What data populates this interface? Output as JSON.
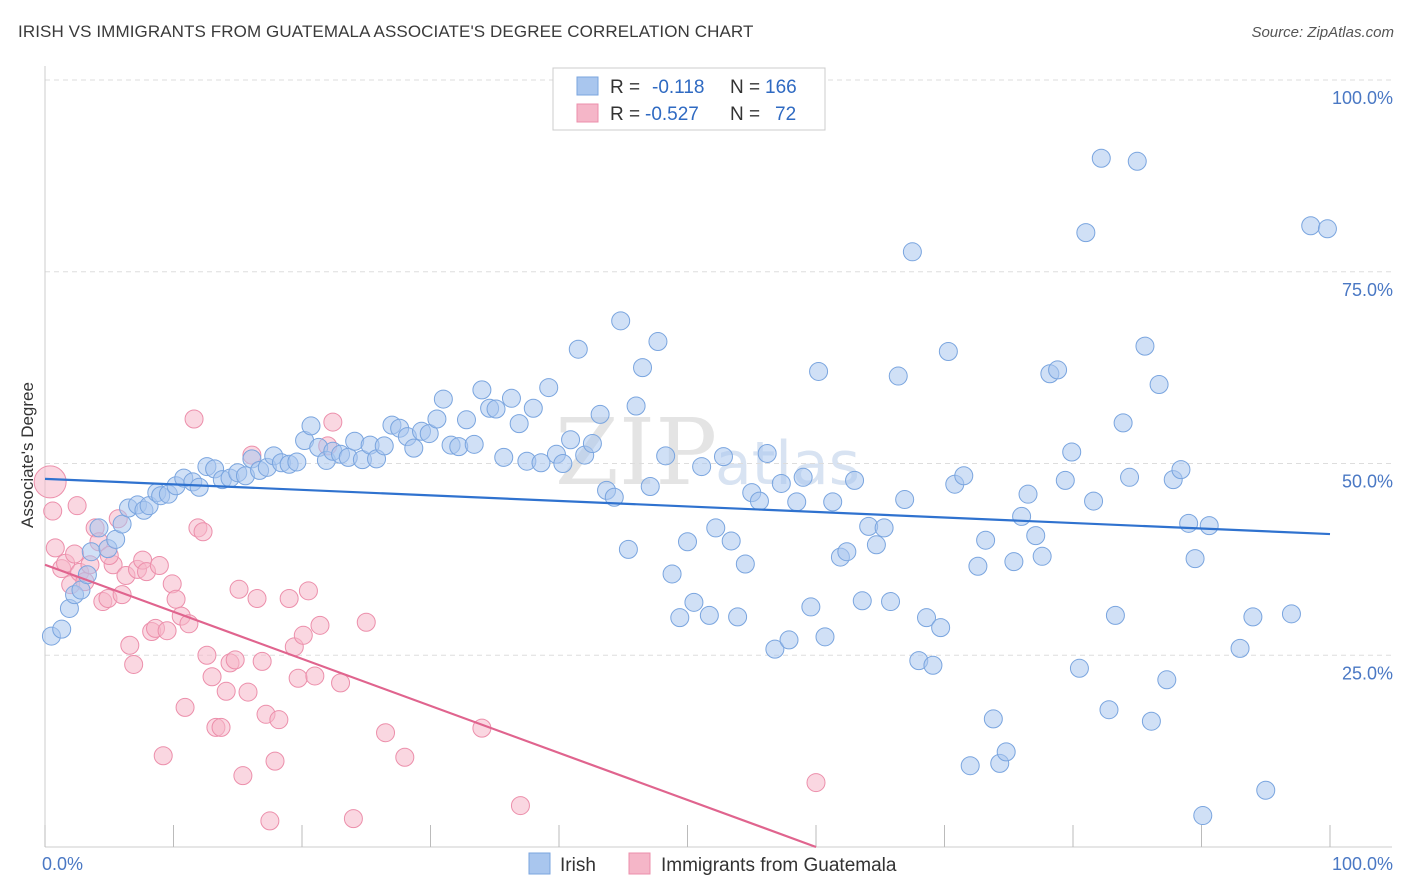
{
  "title": "IRISH VS IMMIGRANTS FROM GUATEMALA ASSOCIATE'S DEGREE CORRELATION CHART",
  "source": "Source: ZipAtlas.com",
  "watermark": {
    "part1": "ZIP",
    "part2": "atlas"
  },
  "legend": {
    "r_label": "R =",
    "n_label": "N =",
    "rows": [
      {
        "r": "-0.118",
        "n": "166"
      },
      {
        "r": "-0.527",
        "n": "72"
      }
    ]
  },
  "bottom_legend": [
    "Irish",
    "Immigrants from Guatemala"
  ],
  "colors": {
    "irish_fill": "#a9c6ee",
    "irish_stroke": "#7aa5df",
    "irish_line": "#2f72cf",
    "guat_fill": "#f5b6c8",
    "guat_stroke": "#ec8fab",
    "guat_line": "#e0648e",
    "grid": "#dddddd",
    "tick_label": "#4a78c4"
  },
  "chart_data": {
    "type": "scatter",
    "title": "IRISH VS IMMIGRANTS FROM GUATEMALA ASSOCIATE'S DEGREE CORRELATION CHART",
    "xlabel": "",
    "ylabel": "Associate's Degree",
    "xlim": [
      0,
      100
    ],
    "ylim": [
      0,
      100
    ],
    "x_tick_labels": [
      "0.0%",
      "100.0%"
    ],
    "y_tick_labels": [
      "25.0%",
      "50.0%",
      "75.0%",
      "100.0%"
    ],
    "y_ticks": [
      25,
      50,
      75,
      100
    ],
    "grid": true,
    "legend_position": "top-center",
    "series": [
      {
        "name": "Irish",
        "r": -0.118,
        "n": 166,
        "trend": {
          "x": [
            0,
            100
          ],
          "y": [
            48.0,
            40.8
          ]
        },
        "points": [
          [
            0.5,
            27.5
          ],
          [
            1.3,
            28.4
          ],
          [
            1.9,
            31.1
          ],
          [
            2.3,
            32.9
          ],
          [
            2.8,
            33.5
          ],
          [
            3.3,
            35.5
          ],
          [
            3.6,
            38.5
          ],
          [
            4.2,
            41.6
          ],
          [
            4.9,
            38.9
          ],
          [
            5.5,
            40.1
          ],
          [
            6.0,
            42.1
          ],
          [
            6.5,
            44.2
          ],
          [
            7.2,
            44.6
          ],
          [
            7.7,
            43.9
          ],
          [
            8.1,
            44.5
          ],
          [
            8.7,
            46.2
          ],
          [
            9.0,
            45.8
          ],
          [
            9.6,
            46.0
          ],
          [
            10.2,
            47.1
          ],
          [
            10.8,
            48.1
          ],
          [
            11.5,
            47.6
          ],
          [
            12.0,
            46.9
          ],
          [
            12.6,
            49.6
          ],
          [
            13.2,
            49.3
          ],
          [
            13.8,
            47.9
          ],
          [
            14.4,
            48.1
          ],
          [
            15.0,
            48.8
          ],
          [
            15.6,
            48.4
          ],
          [
            16.1,
            50.6
          ],
          [
            16.7,
            49.1
          ],
          [
            17.3,
            49.5
          ],
          [
            17.8,
            51.0
          ],
          [
            18.4,
            50.1
          ],
          [
            19.0,
            49.9
          ],
          [
            19.6,
            50.2
          ],
          [
            20.2,
            53.0
          ],
          [
            20.7,
            54.9
          ],
          [
            21.3,
            52.1
          ],
          [
            21.9,
            50.4
          ],
          [
            22.4,
            51.6
          ],
          [
            23.0,
            51.2
          ],
          [
            23.6,
            50.8
          ],
          [
            24.1,
            52.9
          ],
          [
            24.7,
            50.5
          ],
          [
            25.3,
            52.4
          ],
          [
            25.8,
            50.6
          ],
          [
            26.4,
            52.3
          ],
          [
            27.0,
            55.0
          ],
          [
            27.6,
            54.6
          ],
          [
            28.2,
            53.5
          ],
          [
            28.7,
            52.0
          ],
          [
            29.3,
            54.2
          ],
          [
            29.9,
            53.9
          ],
          [
            30.5,
            55.8
          ],
          [
            31.0,
            58.4
          ],
          [
            31.6,
            52.4
          ],
          [
            32.2,
            52.2
          ],
          [
            32.8,
            55.7
          ],
          [
            33.4,
            52.5
          ],
          [
            34.0,
            59.6
          ],
          [
            34.6,
            57.2
          ],
          [
            35.1,
            57.1
          ],
          [
            35.7,
            50.8
          ],
          [
            36.3,
            58.5
          ],
          [
            36.9,
            55.2
          ],
          [
            37.5,
            50.3
          ],
          [
            38.0,
            57.2
          ],
          [
            38.6,
            50.1
          ],
          [
            39.2,
            59.9
          ],
          [
            39.8,
            51.2
          ],
          [
            40.3,
            50.0
          ],
          [
            40.9,
            53.1
          ],
          [
            41.5,
            64.9
          ],
          [
            42.0,
            51.1
          ],
          [
            42.6,
            52.6
          ],
          [
            43.2,
            56.4
          ],
          [
            43.7,
            46.5
          ],
          [
            44.3,
            45.6
          ],
          [
            44.8,
            68.6
          ],
          [
            45.4,
            38.8
          ],
          [
            46.0,
            57.5
          ],
          [
            46.5,
            62.5
          ],
          [
            47.1,
            47.0
          ],
          [
            47.7,
            65.9
          ],
          [
            48.3,
            51.0
          ],
          [
            48.8,
            35.6
          ],
          [
            49.4,
            29.9
          ],
          [
            50.0,
            39.8
          ],
          [
            50.5,
            31.9
          ],
          [
            51.1,
            49.6
          ],
          [
            51.7,
            30.2
          ],
          [
            52.2,
            41.6
          ],
          [
            52.8,
            50.9
          ],
          [
            53.4,
            39.9
          ],
          [
            53.9,
            30.0
          ],
          [
            54.5,
            36.9
          ],
          [
            55.0,
            46.2
          ],
          [
            55.6,
            45.1
          ],
          [
            56.2,
            51.3
          ],
          [
            56.8,
            25.8
          ],
          [
            57.3,
            47.4
          ],
          [
            57.9,
            27.0
          ],
          [
            58.5,
            45.0
          ],
          [
            59.0,
            48.2
          ],
          [
            59.6,
            31.3
          ],
          [
            60.2,
            62.0
          ],
          [
            60.7,
            27.4
          ],
          [
            61.3,
            45.0
          ],
          [
            61.9,
            37.8
          ],
          [
            62.4,
            38.5
          ],
          [
            63.0,
            47.8
          ],
          [
            63.6,
            32.1
          ],
          [
            64.1,
            41.8
          ],
          [
            64.7,
            39.4
          ],
          [
            65.3,
            41.6
          ],
          [
            65.8,
            32.0
          ],
          [
            66.4,
            61.4
          ],
          [
            66.9,
            45.3
          ],
          [
            67.5,
            77.6
          ],
          [
            68.0,
            24.3
          ],
          [
            68.6,
            29.9
          ],
          [
            69.1,
            23.7
          ],
          [
            69.7,
            28.6
          ],
          [
            70.3,
            64.6
          ],
          [
            70.8,
            47.3
          ],
          [
            71.5,
            48.4
          ],
          [
            72.0,
            10.6
          ],
          [
            72.6,
            36.6
          ],
          [
            73.2,
            40.0
          ],
          [
            73.8,
            16.7
          ],
          [
            74.3,
            10.9
          ],
          [
            74.8,
            12.4
          ],
          [
            75.4,
            37.2
          ],
          [
            76.0,
            43.1
          ],
          [
            76.5,
            46.0
          ],
          [
            77.1,
            40.6
          ],
          [
            77.6,
            37.9
          ],
          [
            78.2,
            61.7
          ],
          [
            78.8,
            62.2
          ],
          [
            79.4,
            47.8
          ],
          [
            79.9,
            51.5
          ],
          [
            80.5,
            23.3
          ],
          [
            81.0,
            80.1
          ],
          [
            81.6,
            45.1
          ],
          [
            82.2,
            89.8
          ],
          [
            82.8,
            17.9
          ],
          [
            83.3,
            30.2
          ],
          [
            83.9,
            55.3
          ],
          [
            84.4,
            48.2
          ],
          [
            85.0,
            89.4
          ],
          [
            85.6,
            65.3
          ],
          [
            86.1,
            16.4
          ],
          [
            86.7,
            60.3
          ],
          [
            87.3,
            21.8
          ],
          [
            87.8,
            47.9
          ],
          [
            88.4,
            49.2
          ],
          [
            89.0,
            42.2
          ],
          [
            89.5,
            37.6
          ],
          [
            90.1,
            4.1
          ],
          [
            90.6,
            41.9
          ],
          [
            93.0,
            25.9
          ],
          [
            94.0,
            30.0
          ],
          [
            95.0,
            7.4
          ],
          [
            97.0,
            30.4
          ],
          [
            98.5,
            81.0
          ],
          [
            99.8,
            80.6
          ]
        ]
      },
      {
        "name": "Immigrants from Guatemala",
        "r": -0.527,
        "n": 72,
        "trend": {
          "x": [
            0,
            60
          ],
          "y": [
            36.8,
            0
          ]
        },
        "points": [
          [
            0.4,
            47.6
          ],
          [
            0.6,
            43.8
          ],
          [
            0.8,
            39.0
          ],
          [
            1.3,
            36.3
          ],
          [
            1.6,
            37.0
          ],
          [
            2.0,
            34.2
          ],
          [
            2.3,
            38.2
          ],
          [
            2.7,
            35.8
          ],
          [
            3.1,
            34.6
          ],
          [
            3.5,
            36.8
          ],
          [
            3.9,
            41.6
          ],
          [
            4.2,
            39.8
          ],
          [
            4.5,
            32.0
          ],
          [
            4.9,
            32.4
          ],
          [
            5.3,
            36.8
          ],
          [
            5.7,
            42.8
          ],
          [
            6.0,
            32.9
          ],
          [
            6.3,
            35.4
          ],
          [
            6.6,
            26.3
          ],
          [
            6.9,
            23.8
          ],
          [
            7.2,
            36.2
          ],
          [
            7.6,
            37.4
          ],
          [
            7.9,
            35.9
          ],
          [
            8.3,
            28.1
          ],
          [
            8.6,
            28.5
          ],
          [
            8.9,
            36.7
          ],
          [
            9.2,
            11.9
          ],
          [
            9.5,
            28.2
          ],
          [
            9.9,
            34.3
          ],
          [
            10.2,
            32.3
          ],
          [
            10.6,
            30.1
          ],
          [
            10.9,
            18.2
          ],
          [
            11.2,
            29.1
          ],
          [
            11.6,
            55.8
          ],
          [
            11.9,
            41.6
          ],
          [
            12.3,
            41.1
          ],
          [
            12.6,
            25.0
          ],
          [
            13.0,
            22.2
          ],
          [
            13.3,
            15.6
          ],
          [
            13.7,
            15.6
          ],
          [
            14.1,
            20.3
          ],
          [
            14.4,
            24.0
          ],
          [
            14.8,
            24.4
          ],
          [
            15.1,
            33.6
          ],
          [
            15.4,
            9.3
          ],
          [
            15.8,
            20.2
          ],
          [
            16.1,
            51.1
          ],
          [
            16.5,
            32.4
          ],
          [
            16.9,
            24.2
          ],
          [
            17.2,
            17.3
          ],
          [
            17.5,
            3.4
          ],
          [
            17.9,
            11.2
          ],
          [
            18.2,
            16.6
          ],
          [
            19.0,
            32.4
          ],
          [
            19.4,
            26.1
          ],
          [
            19.7,
            22.0
          ],
          [
            20.1,
            27.6
          ],
          [
            20.5,
            33.4
          ],
          [
            21.0,
            22.3
          ],
          [
            21.4,
            28.9
          ],
          [
            22.0,
            52.3
          ],
          [
            22.4,
            55.4
          ],
          [
            23.0,
            21.4
          ],
          [
            24.0,
            3.7
          ],
          [
            25.0,
            29.3
          ],
          [
            26.5,
            14.9
          ],
          [
            28.0,
            11.7
          ],
          [
            34.0,
            15.5
          ],
          [
            37.0,
            5.4
          ],
          [
            60.0,
            8.4
          ],
          [
            2.5,
            44.5
          ],
          [
            5.0,
            38.0
          ]
        ]
      }
    ]
  }
}
